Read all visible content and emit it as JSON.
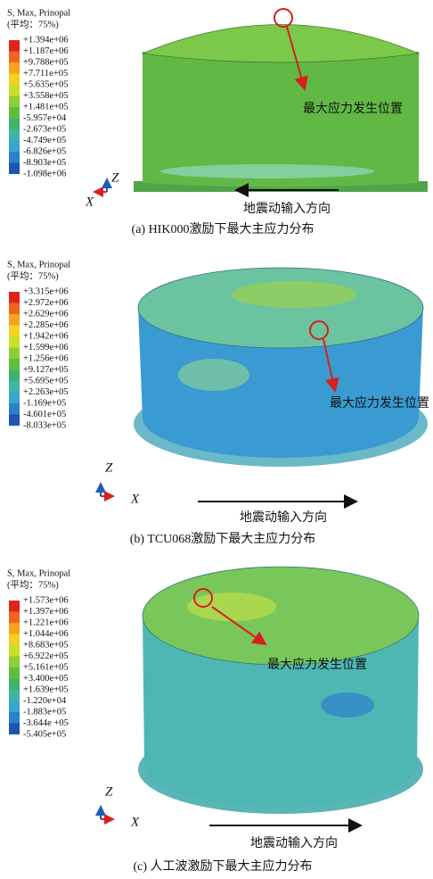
{
  "panels": [
    {
      "legend": {
        "title": "S, Max, Prinopal",
        "subtitle": "(平均：75%)",
        "values": [
          "+1.394e+06",
          "+1.187e+06",
          "+9.788e+05",
          "+7.711e+05",
          "+5.635e+05",
          "+3.558e+05",
          "+1.481e+05",
          "-5.957e+04",
          "-2.673e+05",
          "-4.749e+05",
          "-6.826e+05",
          "-8.903e+05",
          "-1.098e+06"
        ]
      },
      "axis_z": "Z",
      "axis_x": "X",
      "annotation": "最大应力发生位置",
      "direction": "地震动输入方向",
      "caption": "(a) HIK000激励下最大主应力分布"
    },
    {
      "legend": {
        "title": "S, Max, Prinopal",
        "subtitle": "(平均：75%)",
        "values": [
          "+3.315e+06",
          "+2.972e+06",
          "+2.629e+06",
          "+2.285e+06",
          "+1.942e+06",
          "+1.599e+06",
          "+1.256e+06",
          "+9.127e+05",
          "+5.695e+05",
          "+2.263e+05",
          "-1.169e+05",
          "-4.601e+05",
          "-8.033e+05"
        ]
      },
      "axis_z": "Z",
      "axis_x": "X",
      "annotation": "最大应力发生位置",
      "direction": "地震动输入方向",
      "caption": "(b) TCU068激励下最大主应力分布"
    },
    {
      "legend": {
        "title": "S, Max, Prinopal",
        "subtitle": "(平均：75%)",
        "values": [
          "+1.573e+06",
          "+1.397e+06",
          "+1.221e+06",
          "+1.044e+06",
          "+8.683e+05",
          "+6.922e+05",
          "+5.161e+05",
          "+3.400e+05",
          "+1.639e+05",
          "-1.220e+04",
          "-1.883e+05",
          "-3.644e +05",
          "-5.405e+05"
        ]
      },
      "axis_z": "Z",
      "axis_x": "X",
      "annotation": "最大应力发生位置",
      "direction": "地震动输入方向",
      "caption": "(c) 人工波激励下最大主应力分布"
    }
  ]
}
